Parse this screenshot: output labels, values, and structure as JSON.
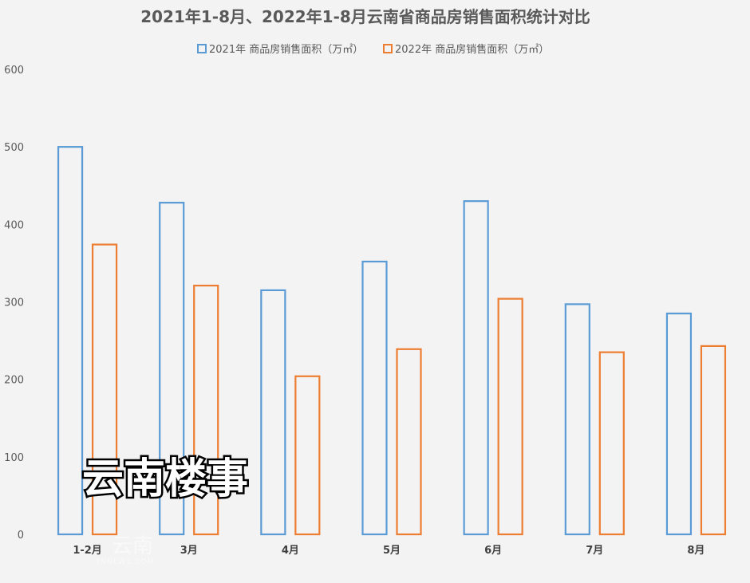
{
  "chart_data": {
    "type": "bar",
    "title": "2021年1-8月、2022年1-8月云南省商品房销售面积统计对比",
    "categories": [
      "1-2月",
      "3月",
      "4月",
      "5月",
      "6月",
      "7月",
      "8月"
    ],
    "series": [
      {
        "name": "2021年 商品房销售面积（万㎡）",
        "color": "#5b9bd5",
        "values": [
          500,
          428,
          315,
          352,
          430,
          297,
          285
        ]
      },
      {
        "name": "2022年 商品房销售面积（万㎡）",
        "color": "#ed7d31",
        "values": [
          374,
          321,
          204,
          239,
          304,
          235,
          243
        ]
      }
    ],
    "ylim": [
      0,
      600
    ],
    "yticks": [
      0,
      100,
      200,
      300,
      400,
      500,
      600
    ],
    "grid": false,
    "legend_position": "top-center",
    "bar_style": "outline"
  },
  "watermark": {
    "main_text": "云南楼事",
    "logo_text": "云南",
    "logo_subtext": "YNNEWS.COM"
  }
}
